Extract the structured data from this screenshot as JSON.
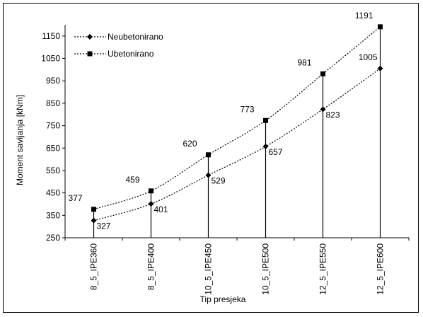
{
  "chart_data": {
    "type": "line",
    "categories": [
      "8_5_IPE360",
      "8_5_IPE400",
      "10_5_IPE450",
      "10_5_IPE500",
      "12_5_IPE550",
      "12_5_IPE600"
    ],
    "series": [
      {
        "name": "Neubetonirano",
        "marker": "diamond",
        "values": [
          327,
          401,
          529,
          657,
          823,
          1005
        ]
      },
      {
        "name": "Ubetonirano",
        "marker": "square",
        "values": [
          377,
          459,
          620,
          773,
          981,
          1191
        ]
      }
    ],
    "xlabel": "Tip presjeka",
    "ylabel": "Moment savijanja [kNm]",
    "ylim": [
      250,
      1200
    ],
    "yticks": [
      250,
      350,
      450,
      550,
      650,
      750,
      850,
      950,
      1050,
      1150
    ],
    "grid": false,
    "legend": "top-left",
    "colors": {
      "line": "#000000",
      "marker": "#000000"
    }
  }
}
